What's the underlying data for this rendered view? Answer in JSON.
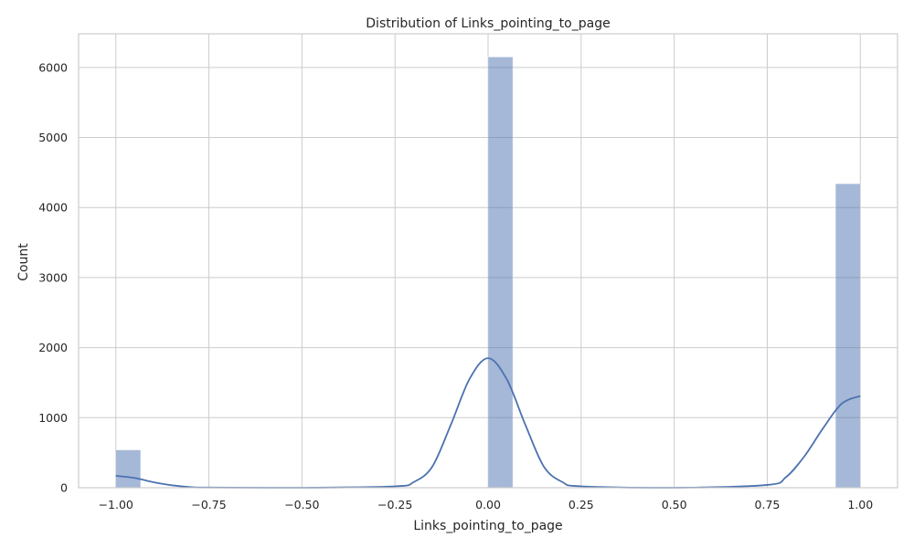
{
  "chart_data": {
    "type": "bar",
    "subtype": "histogram_with_kde",
    "title": "Distribution of Links_pointing_to_page",
    "xlabel": "Links_pointing_to_page",
    "ylabel": "Count",
    "xlim": [
      -1.1,
      1.1
    ],
    "ylim": [
      0,
      6480
    ],
    "x_ticks": [
      -1.0,
      -0.75,
      -0.5,
      -0.25,
      0.0,
      0.25,
      0.5,
      0.75,
      1.0
    ],
    "x_tick_labels": [
      "−1.00",
      "−0.75",
      "−0.50",
      "−0.25",
      "0.00",
      "0.25",
      "0.50",
      "0.75",
      "1.00"
    ],
    "y_ticks": [
      0,
      1000,
      2000,
      3000,
      4000,
      5000,
      6000
    ],
    "y_tick_labels": [
      "0",
      "1000",
      "2000",
      "3000",
      "4000",
      "5000",
      "6000"
    ],
    "bins": [
      {
        "start": -1.0,
        "end": -0.9333,
        "count": 540
      },
      {
        "start": 0.0,
        "end": 0.0667,
        "count": 6150
      },
      {
        "start": 0.9333,
        "end": 1.0,
        "count": 4340
      }
    ],
    "kde": {
      "x": [
        -1.0,
        -0.95,
        -0.9,
        -0.85,
        -0.8,
        -0.75,
        -0.5,
        -0.25,
        -0.2,
        -0.15,
        -0.1,
        -0.05,
        0.0,
        0.05,
        0.1,
        0.15,
        0.2,
        0.25,
        0.5,
        0.75,
        0.8,
        0.85,
        0.9,
        0.95,
        1.0
      ],
      "y": [
        170,
        140,
        80,
        35,
        10,
        3,
        0,
        20,
        80,
        300,
        900,
        1550,
        1850,
        1550,
        900,
        300,
        80,
        20,
        0,
        40,
        150,
        450,
        850,
        1200,
        1310
      ]
    },
    "grid": true,
    "colors": {
      "bar": "#4c72b0",
      "kde": "#4c72b0",
      "grid": "#cccccc"
    }
  }
}
